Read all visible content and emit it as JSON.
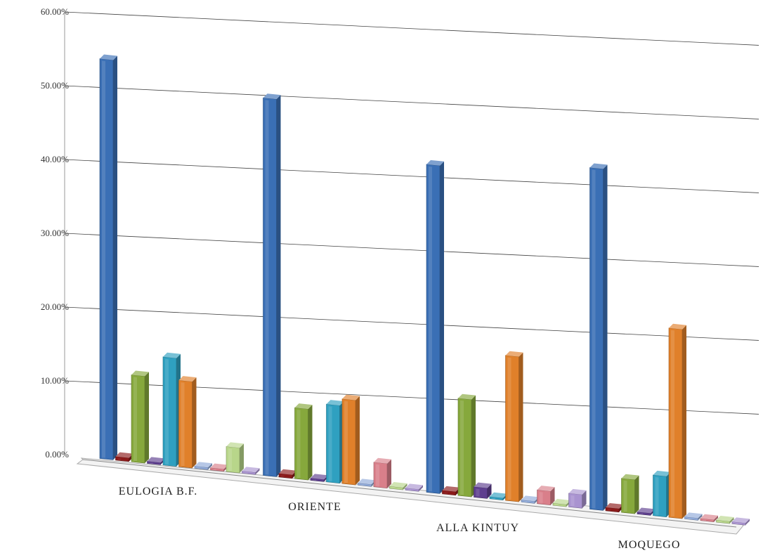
{
  "chart_data": {
    "type": "bar",
    "title": "",
    "xlabel": "",
    "ylabel": "",
    "ylim": [
      0,
      60
    ],
    "y_ticks": [
      "0.00%",
      "10.00%",
      "20.00%",
      "30.00%",
      "40.00%",
      "50.00%",
      "60.00%"
    ],
    "grid": true,
    "legend": "none",
    "categories": [
      "EULOGIA B.F.",
      "ORIENTE",
      "ALLA KINTUY",
      "MOQUEGO"
    ],
    "series": [
      {
        "color": "#3A6FB5",
        "values": [
          55.0,
          53.0,
          47.0,
          50.0
        ]
      },
      {
        "color": "#8B1A1A",
        "values": [
          0.5,
          0.5,
          0.5,
          0.5
        ]
      },
      {
        "color": "#86A83C",
        "values": [
          12.0,
          10.0,
          14.0,
          5.0
        ]
      },
      {
        "color": "#5E3F8F",
        "values": [
          0.3,
          0.3,
          1.5,
          0.3
        ]
      },
      {
        "color": "#2FA0C0",
        "values": [
          15.0,
          11.0,
          0.3,
          6.0
        ]
      },
      {
        "color": "#E0802A",
        "values": [
          12.0,
          12.0,
          21.0,
          28.0
        ]
      },
      {
        "color": "#8FA9D8",
        "values": [
          0.3,
          0.3,
          0.3,
          0.3
        ]
      },
      {
        "color": "#D97F8A",
        "values": [
          0.3,
          3.5,
          2.0,
          0.3
        ]
      },
      {
        "color": "#B8D68A",
        "values": [
          3.5,
          0.3,
          0.3,
          0.3
        ]
      },
      {
        "color": "#A993D0",
        "values": [
          0.3,
          0.3,
          2.0,
          0.3
        ]
      }
    ]
  }
}
